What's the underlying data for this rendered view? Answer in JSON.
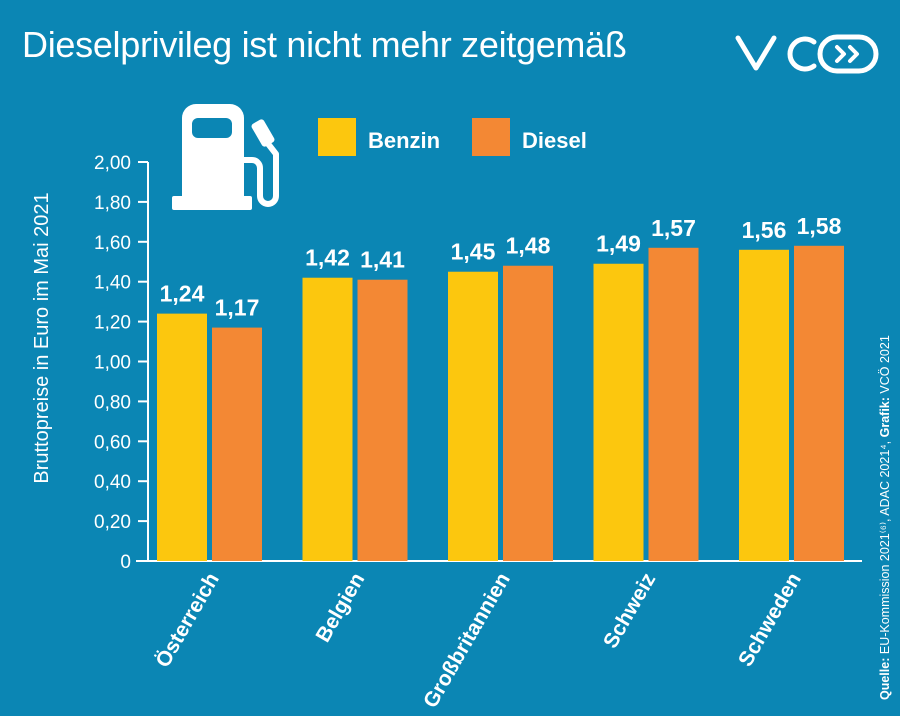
{
  "title": "Dieselprivileg ist nicht mehr zeitgemäß",
  "logo_text": "VCÖ",
  "source": {
    "label": "Quelle:",
    "text": "EU-Kommission 2021⁽⁶⁾, ADAC 2021⁴,",
    "graphic_label": "Grafik:",
    "graphic_text": "VCÖ 2021"
  },
  "colors": {
    "background": "#0b86b4",
    "benzin": "#fcc70e",
    "diesel": "#f38834"
  },
  "icons": [
    "fuel-pump-icon",
    "vco-logo-icon"
  ],
  "chart_data": {
    "type": "bar",
    "title": "Dieselprivileg ist nicht mehr zeitgemäß",
    "ylabel": "Bruttopreise in Euro im Mai 2021",
    "xlabel": "",
    "ylim": [
      0,
      2.0
    ],
    "yticks": [
      "0",
      "0,20",
      "0,40",
      "0,60",
      "0,80",
      "1,00",
      "1,20",
      "1,40",
      "1,60",
      "1,80",
      "2,00"
    ],
    "grid": false,
    "legend_placement": "top",
    "categories": [
      "Österreich",
      "Belgien",
      "Großbritannien",
      "Schweiz",
      "Schweden"
    ],
    "series": [
      {
        "name": "Benzin",
        "color": "#fcc70e",
        "values": [
          1.24,
          1.42,
          1.45,
          1.49,
          1.56
        ],
        "labels": [
          "1,24",
          "1,42",
          "1,45",
          "1,49",
          "1,56"
        ]
      },
      {
        "name": "Diesel",
        "color": "#f38834",
        "values": [
          1.17,
          1.41,
          1.48,
          1.57,
          1.58
        ],
        "labels": [
          "1,17",
          "1,41",
          "1,48",
          "1,57",
          "1,58"
        ]
      }
    ]
  }
}
